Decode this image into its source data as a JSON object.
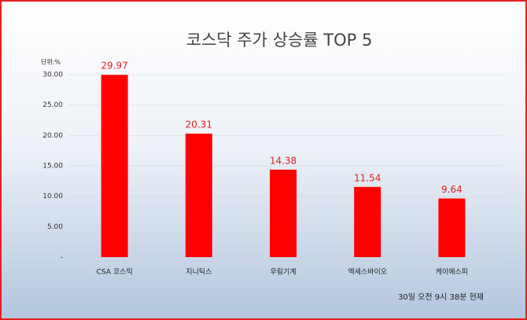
{
  "chart_data": {
    "type": "bar",
    "title": "코스닥 주가 상승률 TOP 5",
    "y_unit": "단위:%",
    "note": "30일  오전 9시 38분 현재",
    "categories": [
      "CSA 코스믹",
      "지니틱스",
      "우림기계",
      "엑세스바이오",
      "케이에스피"
    ],
    "values": [
      29.97,
      20.31,
      14.38,
      11.54,
      9.64
    ],
    "color": "#ff0000",
    "label_color": "#e02020",
    "ylim": [
      0,
      30
    ],
    "yticks": [
      {
        "value": 0,
        "label": "-"
      },
      {
        "value": 5,
        "label": "5.00"
      },
      {
        "value": 10,
        "label": "10.00"
      },
      {
        "value": 15,
        "label": "15.00"
      },
      {
        "value": 20,
        "label": "20.00"
      },
      {
        "value": 25,
        "label": "25.00"
      },
      {
        "value": 30,
        "label": "30.00"
      }
    ],
    "grid": true
  }
}
